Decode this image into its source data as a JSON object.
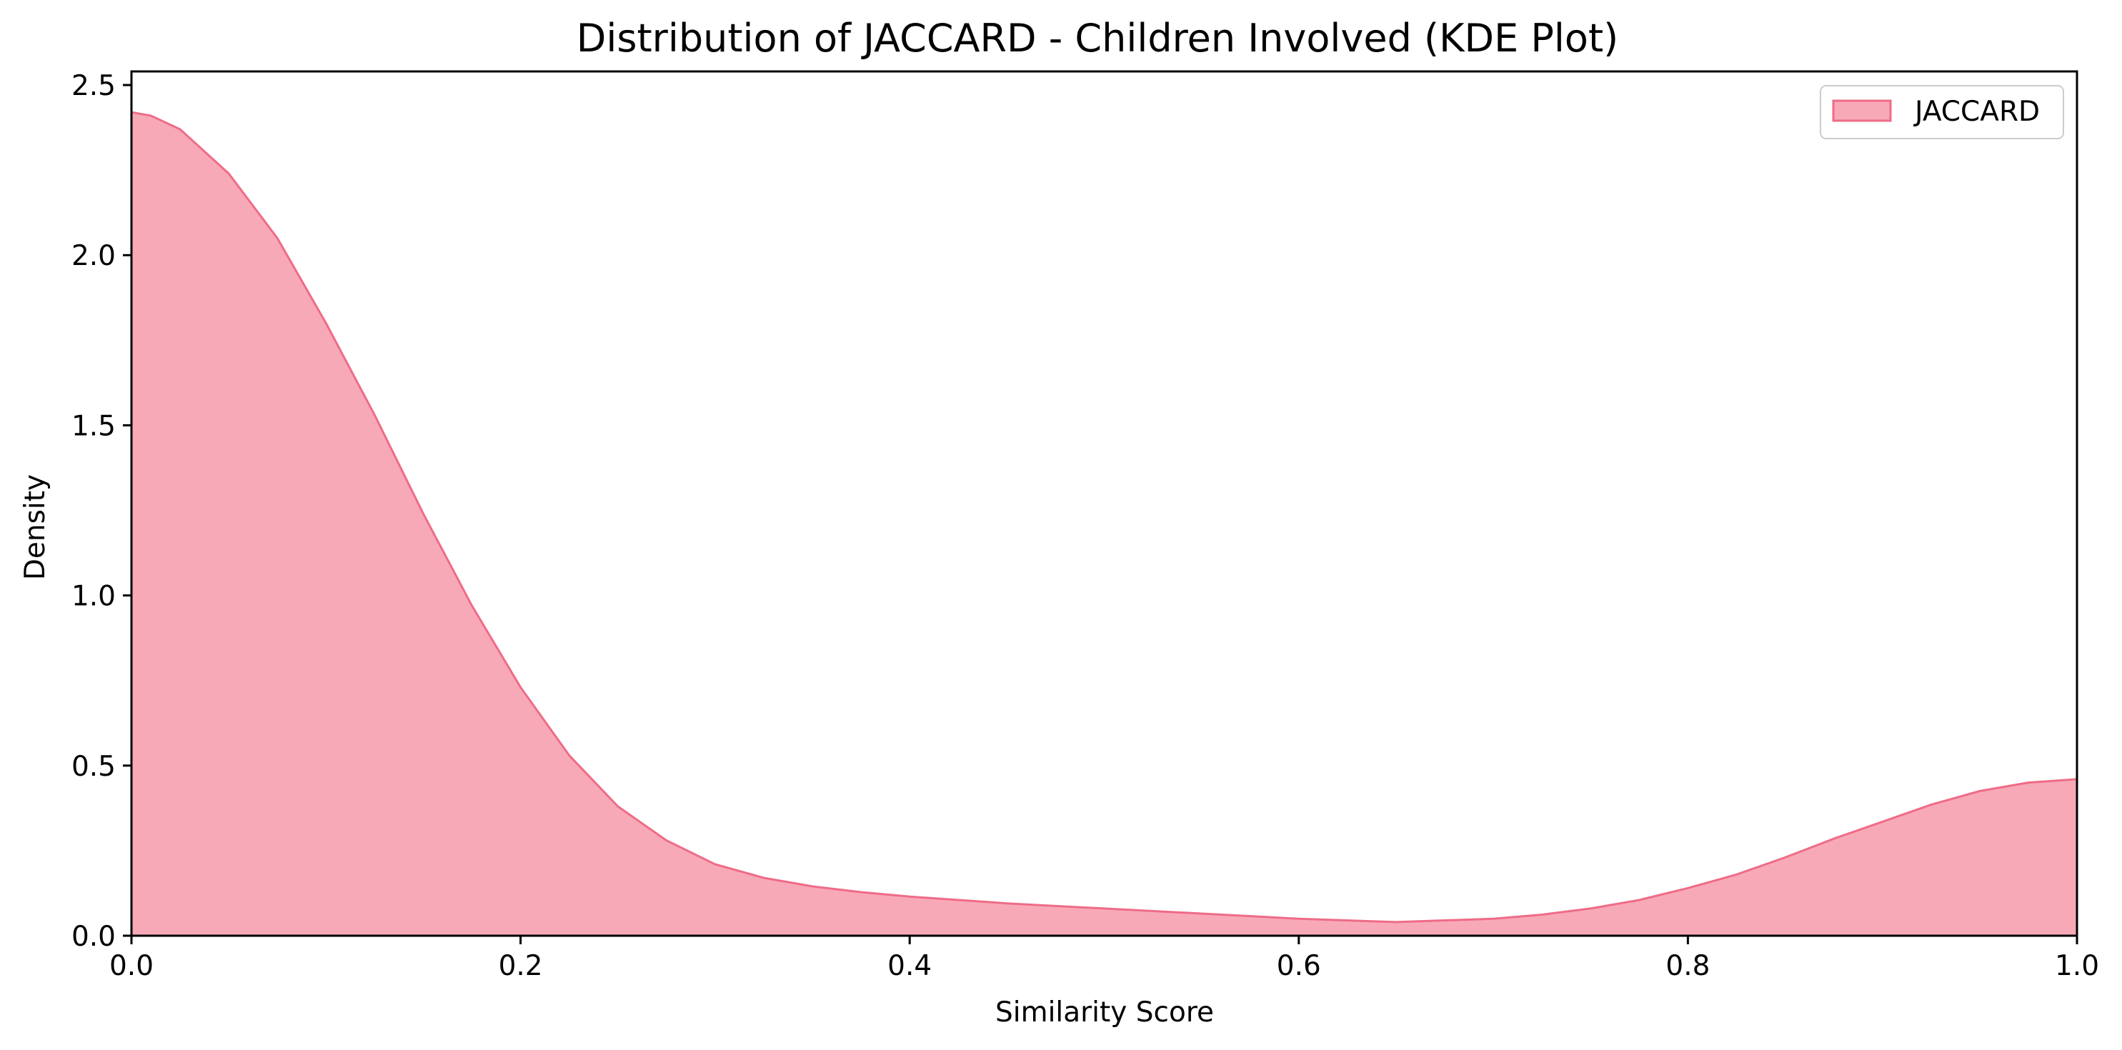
{
  "chart_data": {
    "type": "area",
    "title": "Distribution of JACCARD - Children Involved (KDE Plot)",
    "xlabel": "Similarity Score",
    "ylabel": "Density",
    "xlim": [
      0.0,
      1.0
    ],
    "ylim": [
      0.0,
      2.54
    ],
    "xticks": [
      "0.0",
      "0.2",
      "0.4",
      "0.6",
      "0.8",
      "1.0"
    ],
    "yticks": [
      "0.0",
      "0.5",
      "1.0",
      "1.5",
      "2.0",
      "2.5"
    ],
    "grid": false,
    "legend_position": "top-right",
    "series": [
      {
        "name": "JACCARD",
        "fill_color": "#f8a9b8",
        "line_color": "#ee6c87",
        "x": [
          0.0,
          0.01,
          0.025,
          0.05,
          0.075,
          0.1,
          0.125,
          0.15,
          0.175,
          0.2,
          0.225,
          0.25,
          0.275,
          0.3,
          0.325,
          0.35,
          0.375,
          0.4,
          0.45,
          0.5,
          0.55,
          0.6,
          0.65,
          0.7,
          0.725,
          0.75,
          0.775,
          0.8,
          0.825,
          0.85,
          0.875,
          0.9,
          0.925,
          0.95,
          0.975,
          1.0
        ],
        "y": [
          2.42,
          2.41,
          2.37,
          2.24,
          2.05,
          1.8,
          1.53,
          1.24,
          0.97,
          0.73,
          0.53,
          0.38,
          0.28,
          0.21,
          0.17,
          0.145,
          0.128,
          0.115,
          0.095,
          0.08,
          0.065,
          0.05,
          0.04,
          0.05,
          0.062,
          0.08,
          0.105,
          0.14,
          0.18,
          0.23,
          0.285,
          0.335,
          0.385,
          0.425,
          0.45,
          0.46
        ]
      }
    ]
  }
}
